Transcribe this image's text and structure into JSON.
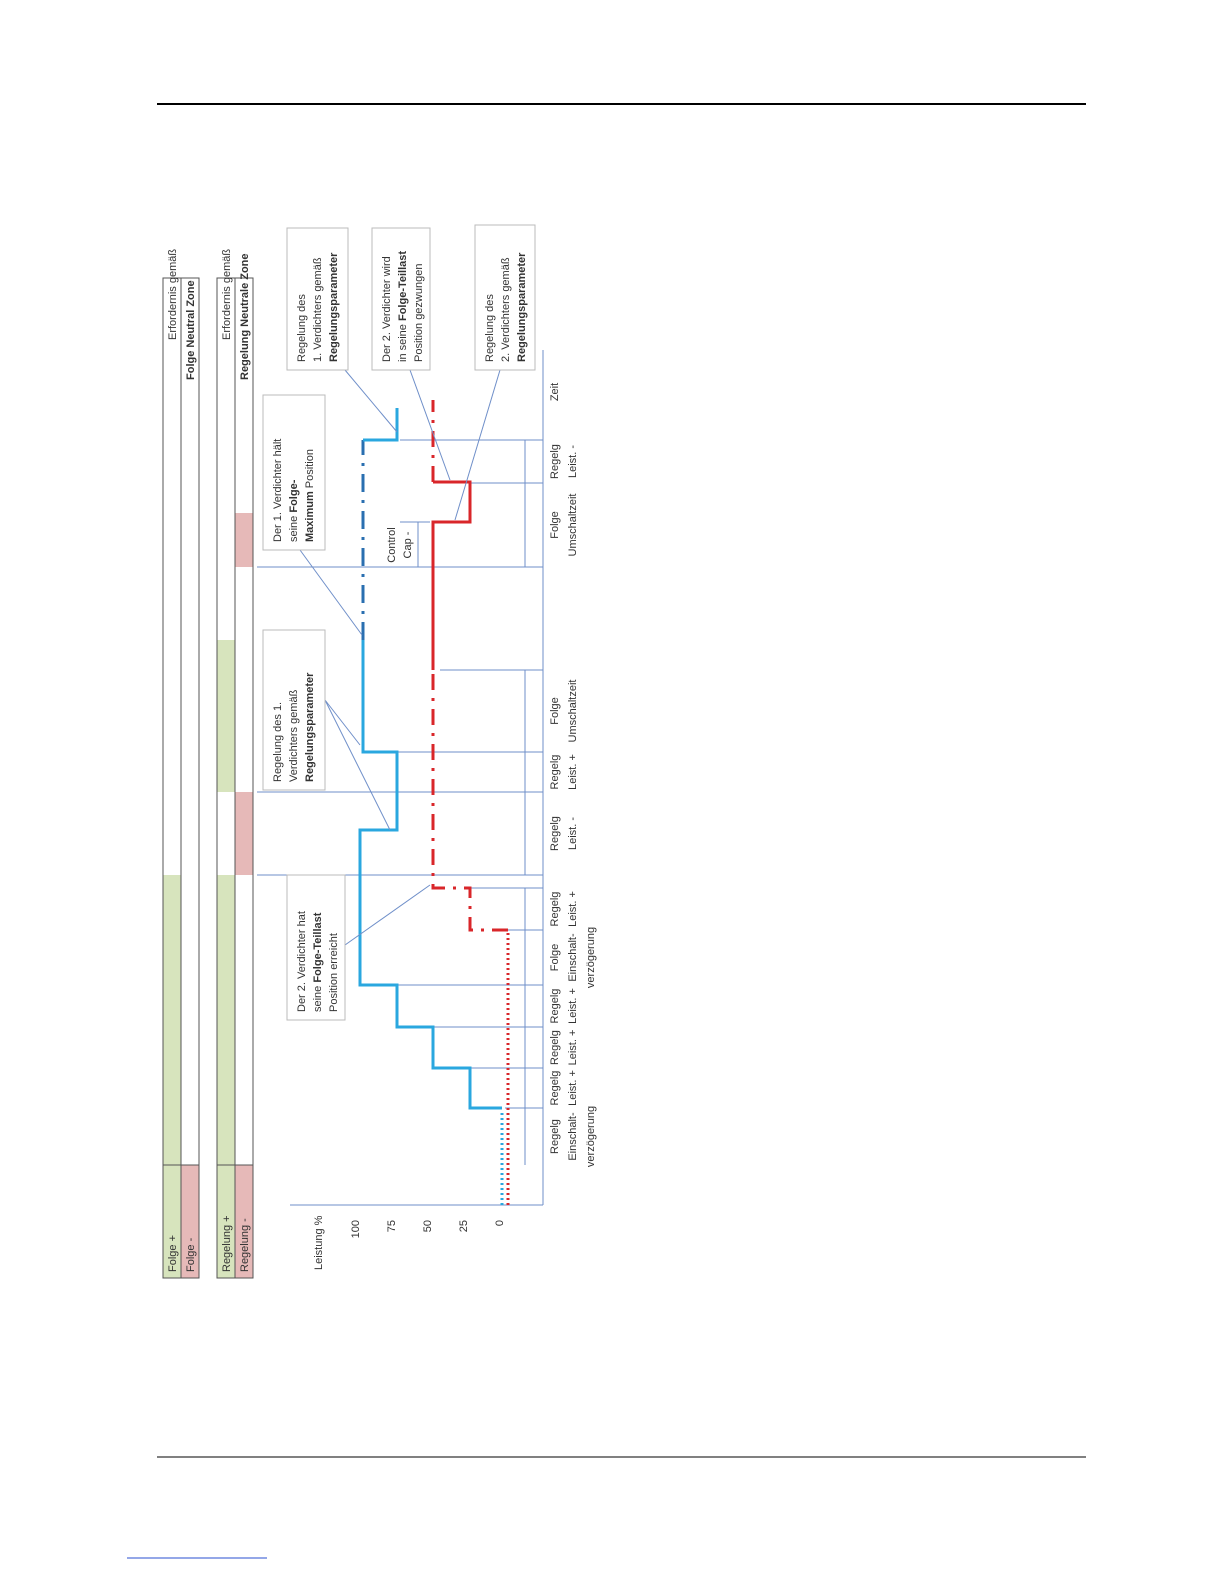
{
  "zones": {
    "folge": {
      "header": "Erfordernis gemäß",
      "header_bold": "Folge Neutral Zone",
      "plus": "Folge +",
      "minus": "Folge -"
    },
    "regelung": {
      "header": "Erfordernis gemäß",
      "header_bold": "Regelung Neutrale Zone",
      "plus": "Regelung +",
      "minus": "Regelung -"
    }
  },
  "axis": {
    "label": "Leistung %",
    "ticks": [
      "100",
      "75",
      "50",
      "25",
      "0"
    ],
    "time": "Zeit"
  },
  "phases": [
    [
      "Regelg",
      "Einschalt-",
      "verzögerung"
    ],
    [
      "Regelg",
      "Leist. +"
    ],
    [
      "Regelg",
      "Leist. +"
    ],
    [
      "Regelg",
      "Leist. +"
    ],
    [
      "Folge",
      "Einschalt-",
      "verzögerung"
    ],
    [
      "Regelg",
      "Leist. +"
    ],
    [
      "Regelg",
      "Leist. -"
    ],
    [
      "Regelg",
      "Leist. +"
    ],
    [
      "Folge",
      "Umschaltzeit"
    ],
    [
      "Folge",
      "Umschaltzeit"
    ],
    [
      "Regelg",
      "Leist. -"
    ]
  ],
  "control_cap": [
    "Control",
    "Cap -"
  ],
  "callouts": [
    [
      [
        {
          "text": "Der 2. Verdichter hat"
        }
      ],
      [
        {
          "text": "seine "
        },
        {
          "text": "Folge-Teillast",
          "bold": true
        }
      ],
      [
        {
          "text": "Position erreicht"
        }
      ]
    ],
    [
      [
        {
          "text": "Regelung des 1."
        }
      ],
      [
        {
          "text": "Verdichters gemäß"
        }
      ],
      [
        {
          "text": "Regelungsparameter",
          "bold": true
        }
      ]
    ],
    [
      [
        {
          "text": "Der 1. Verdichter hält"
        }
      ],
      [
        {
          "text": "seine "
        },
        {
          "text": "Folge-",
          "bold": true
        }
      ],
      [
        {
          "text": "Maximum",
          "bold": true
        },
        {
          "text": " Position"
        }
      ]
    ],
    [
      [
        {
          "text": "Regelung des"
        }
      ],
      [
        {
          "text": "1. Verdichters gemäß"
        }
      ],
      [
        {
          "text": "Regelungsparameter",
          "bold": true
        }
      ]
    ],
    [
      [
        {
          "text": "Der 2. Verdichter wird"
        }
      ],
      [
        {
          "text": "in seine "
        },
        {
          "text": "Folge-Teillast",
          "bold": true
        }
      ],
      [
        {
          "text": "Position gezwungen"
        }
      ]
    ],
    [
      [
        {
          "text": "Regelung des"
        }
      ],
      [
        {
          "text": "2. Verdichters gemäß"
        }
      ],
      [
        {
          "text": "Regelungsparameter",
          "bold": true
        }
      ]
    ]
  ]
}
